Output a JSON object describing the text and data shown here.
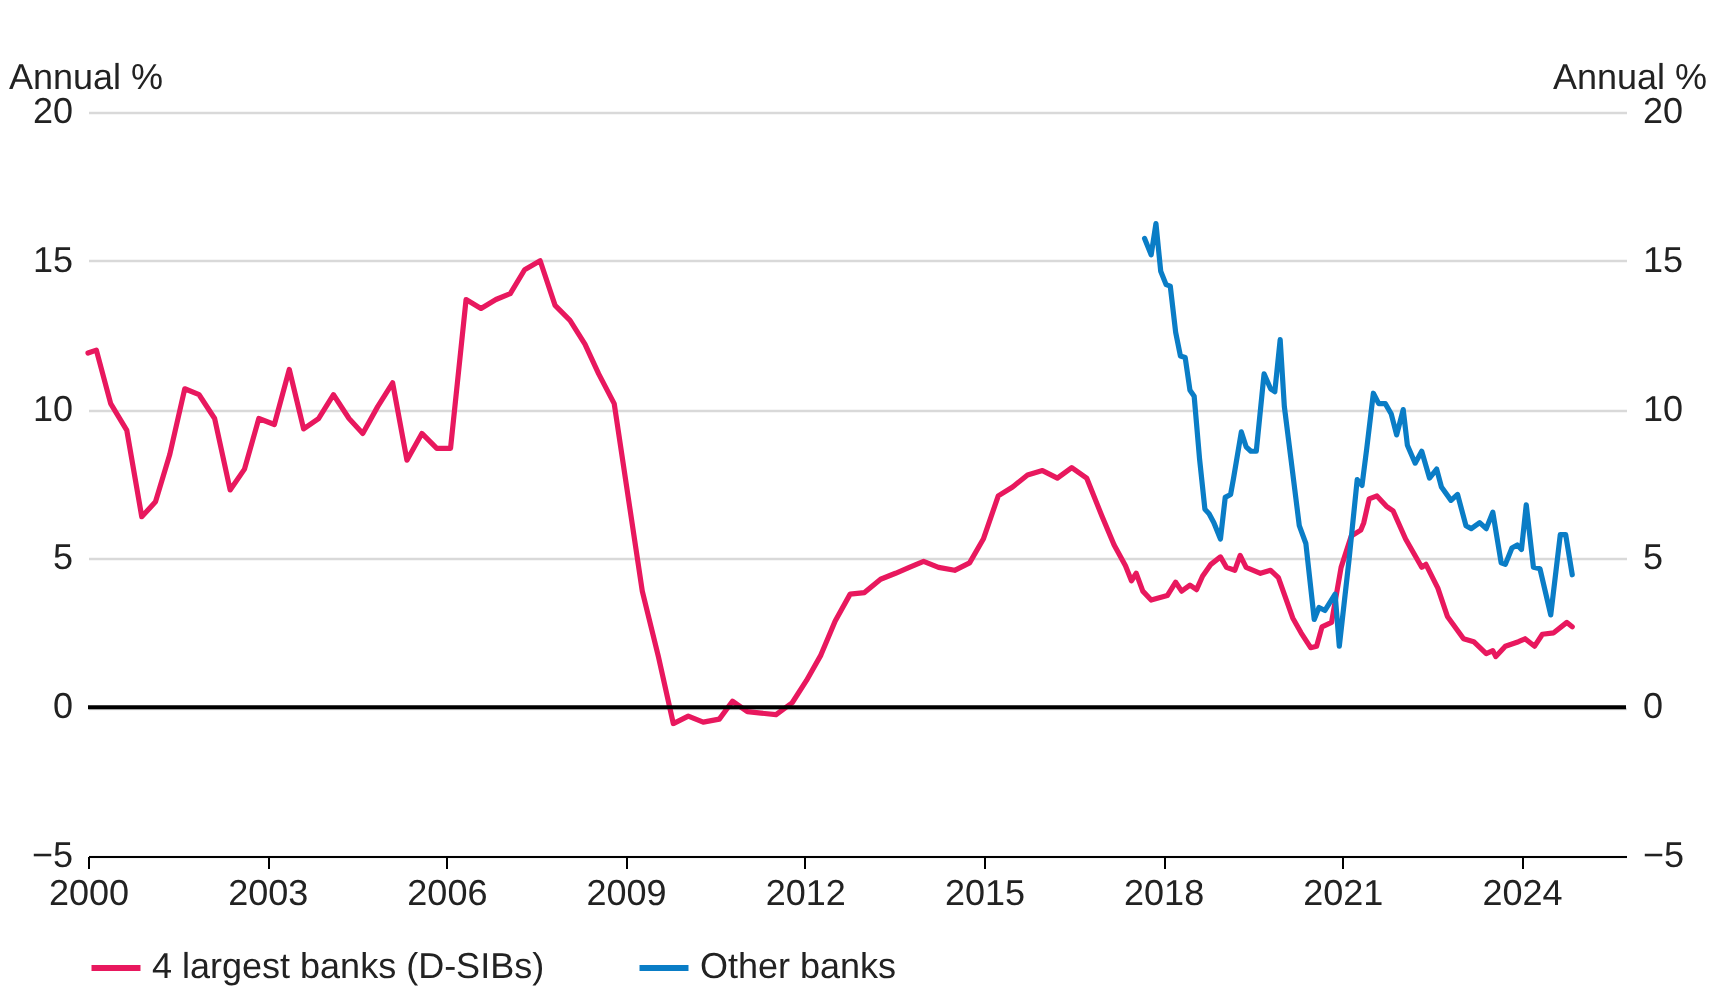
{
  "chart_data": {
    "type": "line",
    "ylabel": "Annual %",
    "y2label": "Annual %",
    "xlim": [
      2000,
      2025.75
    ],
    "xticks": [
      2000,
      2003,
      2006,
      2009,
      2012,
      2015,
      2018,
      2021,
      2024
    ],
    "ylim": [
      -5,
      20
    ],
    "yticks": [
      {
        "value": -5,
        "label": "−5"
      },
      0,
      5,
      10,
      15,
      20
    ],
    "y2lim": [
      -5,
      20
    ],
    "y2ticks": [
      {
        "value": -5,
        "label": "−5"
      },
      0,
      5,
      10,
      15,
      20
    ],
    "grid": "y",
    "legend": "bottom",
    "marker": "none",
    "line_style": "solid",
    "ref_lines": [
      {
        "axis": "y2",
        "value": 0,
        "color": "#000000"
      }
    ],
    "series": [
      {
        "name": "4 largest banks (D-SIBs)",
        "color": "#e8185e",
        "x": [
          2000.0,
          2000.14,
          2000.38,
          2000.65,
          2000.9,
          2001.13,
          2001.37,
          2001.62,
          2001.86,
          2002.12,
          2002.38,
          2002.62,
          2002.86,
          2003.12,
          2003.37,
          2003.61,
          2003.86,
          2004.11,
          2004.37,
          2004.6,
          2004.85,
          2005.1,
          2005.34,
          2005.59,
          2005.84,
          2006.07,
          2006.33,
          2006.58,
          2006.83,
          2007.07,
          2007.31,
          2007.57,
          2007.82,
          2008.07,
          2008.32,
          2008.55,
          2008.81,
          2009.28,
          2009.55,
          2009.8,
          2010.05,
          2010.3,
          2010.57,
          2010.79,
          2011.04,
          2011.27,
          2011.52,
          2011.79,
          2012.03,
          2012.27,
          2012.51,
          2012.76,
          2013.0,
          2013.27,
          2013.52,
          2013.75,
          2013.99,
          2014.24,
          2014.51,
          2014.76,
          2014.99,
          2015.24,
          2015.48,
          2015.73,
          2015.98,
          2016.23,
          2016.47,
          2016.72,
          2016.97,
          2017.18,
          2017.37,
          2017.47,
          2017.55,
          2017.66,
          2017.8,
          2018.07,
          2018.21,
          2018.31,
          2018.45,
          2018.56,
          2018.66,
          2018.8,
          2018.96,
          2019.06,
          2019.2,
          2019.29,
          2019.39,
          2019.63,
          2019.8,
          2019.93,
          2020.17,
          2020.31,
          2020.47,
          2020.57,
          2020.66,
          2020.82,
          2020.98,
          2021.15,
          2021.31,
          2021.36,
          2021.45,
          2021.58,
          2021.74,
          2021.85,
          2022.06,
          2022.33,
          2022.4,
          2022.6,
          2022.76,
          2023.03,
          2023.2,
          2023.41,
          2023.52,
          2023.57,
          2023.73,
          2023.95,
          2024.06,
          2024.22,
          2024.35,
          2024.54,
          2024.76,
          2024.85
        ],
        "values": [
          11.9,
          12.0,
          10.2,
          9.3,
          6.4,
          6.9,
          8.5,
          10.7,
          10.5,
          9.7,
          7.3,
          8.0,
          9.7,
          9.5,
          11.35,
          9.35,
          9.7,
          10.5,
          9.7,
          9.2,
          10.1,
          10.9,
          8.3,
          9.2,
          8.7,
          8.7,
          13.7,
          13.4,
          13.7,
          13.9,
          14.7,
          15.0,
          13.5,
          13.0,
          12.2,
          11.2,
          10.2,
          3.9,
          1.7,
          -0.55,
          -0.3,
          -0.5,
          -0.4,
          0.2,
          -0.15,
          -0.2,
          -0.25,
          0.15,
          0.9,
          1.75,
          2.9,
          3.8,
          3.85,
          4.3,
          4.5,
          4.7,
          4.9,
          4.7,
          4.6,
          4.85,
          5.65,
          7.1,
          7.4,
          7.8,
          7.95,
          7.7,
          8.05,
          7.7,
          6.45,
          5.45,
          4.75,
          4.25,
          4.5,
          3.9,
          3.6,
          3.75,
          4.2,
          3.9,
          4.1,
          3.95,
          4.4,
          4.8,
          5.05,
          4.7,
          4.6,
          5.1,
          4.7,
          4.5,
          4.6,
          4.35,
          3.0,
          2.5,
          2.0,
          2.05,
          2.7,
          2.85,
          4.7,
          5.75,
          5.95,
          6.2,
          7.0,
          7.1,
          6.75,
          6.6,
          5.65,
          4.7,
          4.8,
          4.0,
          3.05,
          2.3,
          2.2,
          1.8,
          1.9,
          1.7,
          2.05,
          2.2,
          2.3,
          2.05,
          2.45,
          2.5,
          2.85,
          2.7
        ]
      },
      {
        "name": "Other banks",
        "color": "#0a7dc6",
        "x": [
          2017.69,
          2017.8,
          2017.88,
          2017.96,
          2018.05,
          2018.12,
          2018.21,
          2018.29,
          2018.37,
          2018.45,
          2018.52,
          2018.61,
          2018.7,
          2018.77,
          2018.85,
          2018.96,
          2019.04,
          2019.13,
          2019.18,
          2019.31,
          2019.39,
          2019.47,
          2019.56,
          2019.69,
          2019.8,
          2019.87,
          2019.96,
          2020.03,
          2020.14,
          2020.28,
          2020.39,
          2020.53,
          2020.61,
          2020.71,
          2020.88,
          2020.95,
          2021.11,
          2021.25,
          2021.33,
          2021.41,
          2021.52,
          2021.61,
          2021.72,
          2021.82,
          2021.91,
          2022.02,
          2022.09,
          2022.22,
          2022.33,
          2022.46,
          2022.58,
          2022.66,
          2022.82,
          2022.93,
          2023.07,
          2023.16,
          2023.3,
          2023.41,
          2023.52,
          2023.66,
          2023.73,
          2023.84,
          2023.93,
          2024.0,
          2024.08,
          2024.2,
          2024.31,
          2024.49,
          2024.65,
          2024.74,
          2024.85
        ],
        "values": [
          15.75,
          15.2,
          16.25,
          14.65,
          14.2,
          14.15,
          12.6,
          11.8,
          11.75,
          10.65,
          10.45,
          8.35,
          6.65,
          6.5,
          6.2,
          5.65,
          7.05,
          7.15,
          7.7,
          9.25,
          8.75,
          8.6,
          8.6,
          11.2,
          10.7,
          10.6,
          12.35,
          10.1,
          8.35,
          6.1,
          5.5,
          2.95,
          3.35,
          3.25,
          3.8,
          2.05,
          4.9,
          7.65,
          7.45,
          8.7,
          10.55,
          10.2,
          10.2,
          9.85,
          9.15,
          10.0,
          8.8,
          8.2,
          8.6,
          7.7,
          8.0,
          7.4,
          6.95,
          7.15,
          6.1,
          6.0,
          6.2,
          6.0,
          6.55,
          4.85,
          4.8,
          5.35,
          5.45,
          5.3,
          6.8,
          4.7,
          4.65,
          3.1,
          5.8,
          5.8,
          4.45
        ]
      }
    ]
  }
}
